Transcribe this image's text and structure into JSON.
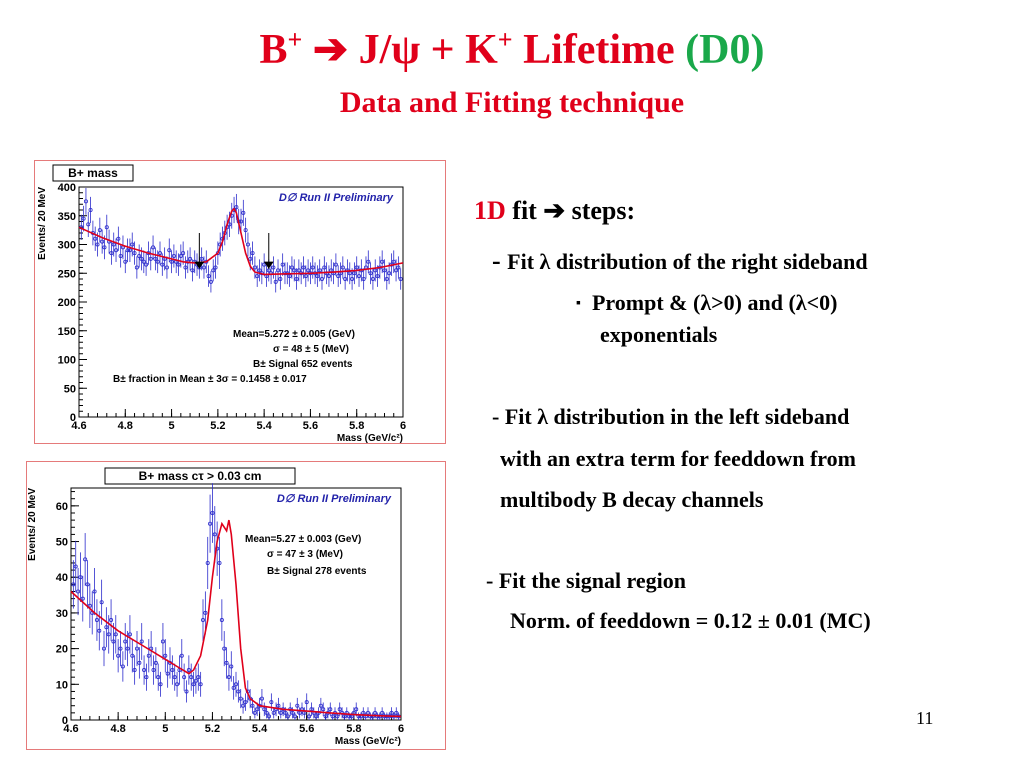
{
  "slide": {
    "title_main": "B",
    "title_sup1": "+",
    "title_arrow": " ➔ J/ψ + K",
    "title_sup2": "+",
    "title_rest": " Lifetime ",
    "title_d0": "(D0)",
    "subtitle": "Data and Fitting technique",
    "page_number": "11"
  },
  "text": {
    "fit_head_1d": "1D",
    "fit_head_rest": " fit ➔  steps:",
    "step1_dash": "- ",
    "step1": "Fit λ distribution of the right sideband",
    "bullet_marker": "▪",
    "sub_bullet_line1": "Prompt  & (λ>0) and (λ<0)",
    "sub_bullet_line2": "exponentials",
    "step2_line1": "- Fit λ distribution in the left sideband",
    "step2_line2": "with an extra term for feeddown from",
    "step2_line3": "multibody B decay channels",
    "step3_line1": "- Fit the signal region",
    "step3_line2": "Norm. of feeddown = 0.12  ± 0.01 (MC)"
  },
  "chart_data": [
    {
      "type": "scatter",
      "histogram_name": "B+ mass",
      "watermark": "D∅ Run II Preliminary",
      "ylabel": "Events/ 20  MeV",
      "xlabel": "Mass (GeV/c²)",
      "xlim": [
        4.6,
        6.0
      ],
      "ylim": [
        0,
        400
      ],
      "xticks": [
        "4.6",
        "4.8",
        "5",
        "5.2",
        "5.4",
        "5.6",
        "5.8",
        "6"
      ],
      "yticks": [
        "0",
        "50",
        "100",
        "150",
        "200",
        "250",
        "300",
        "350",
        "400"
      ],
      "stats": [
        "Mean=5.272   ± 0.005 (GeV)",
        "σ = 48 ± 5 (MeV)",
        "B± Signal 652 events",
        "B± fraction in  Mean ± 3σ  = 0.1458 ± 0.017"
      ],
      "arrows_at": [
        5.12,
        5.42
      ],
      "data_x": [
        4.61,
        4.62,
        4.63,
        4.64,
        4.65,
        4.66,
        4.67,
        4.68,
        4.69,
        4.7,
        4.71,
        4.72,
        4.73,
        4.74,
        4.75,
        4.76,
        4.77,
        4.78,
        4.79,
        4.8,
        4.81,
        4.82,
        4.83,
        4.84,
        4.85,
        4.86,
        4.87,
        4.88,
        4.89,
        4.9,
        4.91,
        4.92,
        4.93,
        4.94,
        4.95,
        4.96,
        4.97,
        4.98,
        4.99,
        5.0,
        5.01,
        5.02,
        5.03,
        5.04,
        5.05,
        5.06,
        5.07,
        5.08,
        5.09,
        5.1,
        5.11,
        5.12,
        5.13,
        5.14,
        5.15,
        5.16,
        5.17,
        5.18,
        5.19,
        5.2,
        5.21,
        5.22,
        5.23,
        5.24,
        5.25,
        5.26,
        5.27,
        5.28,
        5.29,
        5.3,
        5.31,
        5.32,
        5.33,
        5.34,
        5.35,
        5.36,
        5.37,
        5.38,
        5.39,
        5.4,
        5.41,
        5.42,
        5.43,
        5.44,
        5.45,
        5.46,
        5.47,
        5.48,
        5.49,
        5.5,
        5.51,
        5.52,
        5.53,
        5.54,
        5.55,
        5.56,
        5.57,
        5.58,
        5.59,
        5.6,
        5.61,
        5.62,
        5.63,
        5.64,
        5.65,
        5.66,
        5.67,
        5.68,
        5.69,
        5.7,
        5.71,
        5.72,
        5.73,
        5.74,
        5.75,
        5.76,
        5.77,
        5.78,
        5.79,
        5.8,
        5.81,
        5.82,
        5.83,
        5.84,
        5.85,
        5.86,
        5.87,
        5.88,
        5.89,
        5.9,
        5.91,
        5.92,
        5.93,
        5.94,
        5.95,
        5.96,
        5.97,
        5.98,
        5.99
      ],
      "data_y": [
        330,
        345,
        375,
        335,
        360,
        320,
        310,
        300,
        325,
        305,
        295,
        330,
        305,
        285,
        300,
        290,
        310,
        280,
        295,
        270,
        290,
        290,
        300,
        285,
        260,
        280,
        275,
        270,
        265,
        285,
        275,
        295,
        275,
        270,
        285,
        265,
        275,
        260,
        290,
        270,
        280,
        270,
        265,
        280,
        285,
        260,
        270,
        275,
        255,
        270,
        265,
        260,
        275,
        260,
        270,
        245,
        235,
        255,
        260,
        285,
        300,
        310,
        320,
        330,
        335,
        350,
        360,
        365,
        340,
        340,
        355,
        325,
        300,
        275,
        285,
        260,
        245,
        255,
        250,
        265,
        245,
        255,
        250,
        260,
        235,
        255,
        240,
        265,
        250,
        250,
        245,
        260,
        255,
        240,
        255,
        250,
        260,
        245,
        255,
        250,
        260,
        250,
        245,
        255,
        240,
        260,
        250,
        245,
        255,
        250,
        265,
        245,
        250,
        260,
        240,
        255,
        250,
        240,
        250,
        260,
        245,
        255,
        240,
        260,
        270,
        250,
        240,
        255,
        245,
        260,
        270,
        255,
        240,
        250,
        265,
        270,
        255,
        260,
        240
      ],
      "fit_x": [
        4.6,
        4.7,
        4.8,
        4.9,
        5.0,
        5.05,
        5.1,
        5.15,
        5.2,
        5.22,
        5.24,
        5.26,
        5.27,
        5.28,
        5.3,
        5.32,
        5.34,
        5.36,
        5.4,
        5.5,
        5.6,
        5.7,
        5.8,
        5.9,
        6.0
      ],
      "fit_y": [
        330,
        312,
        297,
        285,
        275,
        270,
        268,
        270,
        285,
        305,
        335,
        358,
        362,
        355,
        320,
        285,
        262,
        252,
        248,
        249,
        250,
        252,
        255,
        260,
        268
      ]
    },
    {
      "type": "scatter",
      "histogram_name": "B+ mass  cτ > 0.03 cm",
      "watermark": "D∅ Run II Preliminary",
      "ylabel": "Events/ 20  MeV",
      "xlabel": "Mass (GeV/c²)",
      "xlim": [
        4.6,
        6.0
      ],
      "ylim": [
        0,
        65
      ],
      "xticks": [
        "4.6",
        "4.8",
        "5",
        "5.2",
        "5.4",
        "5.6",
        "5.8",
        "6"
      ],
      "yticks": [
        "0",
        "10",
        "20",
        "30",
        "40",
        "50",
        "60"
      ],
      "stats": [
        "Mean=5.27   ± 0.003 (GeV)",
        "σ = 47 ± 3 (MeV)",
        "B± Signal 278 events"
      ],
      "data_x": [
        4.61,
        4.62,
        4.63,
        4.64,
        4.65,
        4.66,
        4.67,
        4.68,
        4.69,
        4.7,
        4.71,
        4.72,
        4.73,
        4.74,
        4.75,
        4.76,
        4.77,
        4.78,
        4.79,
        4.8,
        4.81,
        4.82,
        4.83,
        4.84,
        4.85,
        4.86,
        4.87,
        4.88,
        4.89,
        4.9,
        4.91,
        4.92,
        4.93,
        4.94,
        4.95,
        4.96,
        4.97,
        4.98,
        4.99,
        5.0,
        5.01,
        5.02,
        5.03,
        5.04,
        5.05,
        5.06,
        5.07,
        5.08,
        5.09,
        5.1,
        5.11,
        5.12,
        5.13,
        5.14,
        5.15,
        5.16,
        5.17,
        5.18,
        5.19,
        5.2,
        5.21,
        5.22,
        5.23,
        5.24,
        5.25,
        5.26,
        5.27,
        5.28,
        5.29,
        5.3,
        5.31,
        5.32,
        5.33,
        5.34,
        5.35,
        5.36,
        5.37,
        5.38,
        5.39,
        5.4,
        5.41,
        5.42,
        5.43,
        5.44,
        5.45,
        5.46,
        5.47,
        5.48,
        5.49,
        5.5,
        5.51,
        5.52,
        5.53,
        5.54,
        5.55,
        5.56,
        5.57,
        5.58,
        5.59,
        5.6,
        5.61,
        5.62,
        5.63,
        5.64,
        5.65,
        5.66,
        5.67,
        5.68,
        5.69,
        5.7,
        5.71,
        5.72,
        5.73,
        5.74,
        5.75,
        5.76,
        5.77,
        5.78,
        5.79,
        5.8,
        5.81,
        5.82,
        5.83,
        5.84,
        5.85,
        5.86,
        5.87,
        5.88,
        5.89,
        5.9,
        5.91,
        5.92,
        5.93,
        5.94,
        5.95,
        5.96,
        5.97,
        5.98,
        5.99
      ],
      "data_y": [
        38,
        43,
        36,
        40,
        34,
        45,
        38,
        32,
        30,
        36,
        28,
        25,
        33,
        20,
        26,
        24,
        28,
        22,
        24,
        18,
        20,
        15,
        22,
        20,
        24,
        18,
        14,
        20,
        16,
        22,
        14,
        12,
        18,
        20,
        14,
        16,
        12,
        10,
        22,
        18,
        13,
        16,
        14,
        12,
        10,
        14,
        18,
        12,
        8,
        14,
        12,
        10,
        11,
        12,
        10,
        28,
        30,
        44,
        55,
        58,
        52,
        48,
        44,
        28,
        20,
        16,
        12,
        15,
        9,
        10,
        8,
        6,
        4,
        5,
        8,
        6,
        4,
        2,
        3,
        4,
        6,
        3,
        2,
        1,
        5,
        2,
        3,
        4,
        2,
        3,
        2,
        1,
        3,
        2,
        1,
        4,
        2,
        3,
        2,
        5,
        1,
        3,
        2,
        1,
        2,
        4,
        3,
        1,
        2,
        3,
        1,
        2,
        1,
        3,
        2,
        1,
        2,
        1,
        1,
        2,
        3,
        1,
        1,
        2,
        1,
        2,
        1,
        1,
        2,
        1,
        1,
        2,
        1,
        1,
        1,
        2,
        1,
        2,
        1
      ],
      "fit_x": [
        4.6,
        4.7,
        4.8,
        4.9,
        5.0,
        5.05,
        5.1,
        5.12,
        5.15,
        5.18,
        5.2,
        5.22,
        5.24,
        5.26,
        5.27,
        5.28,
        5.3,
        5.32,
        5.34,
        5.36,
        5.4,
        5.5,
        5.6,
        5.7,
        5.8,
        5.9,
        6.0
      ],
      "fit_y": [
        36,
        30,
        25,
        21,
        17,
        15,
        13,
        14,
        18,
        28,
        40,
        50,
        55,
        53,
        56,
        52,
        38,
        20,
        9,
        6,
        4,
        3,
        2.5,
        2,
        1.5,
        1.2,
        1
      ]
    }
  ]
}
